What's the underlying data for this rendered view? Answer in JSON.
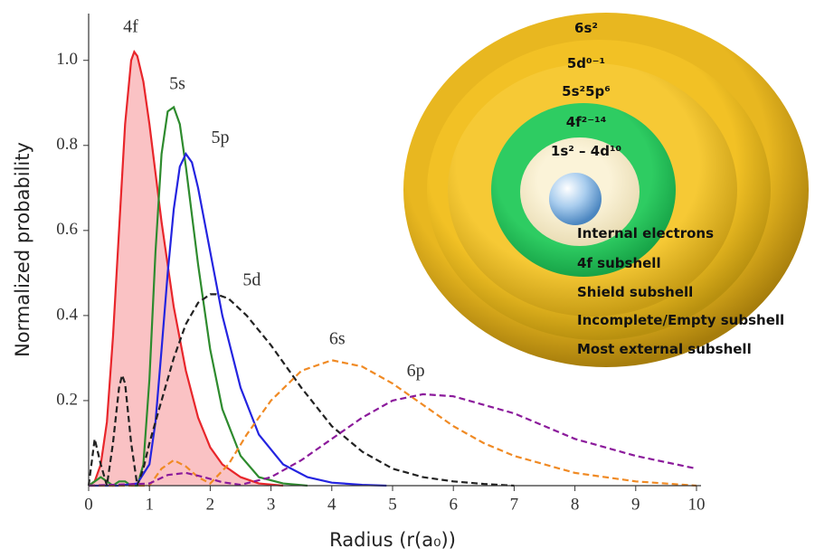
{
  "chart_data": {
    "type": "line",
    "x_label": "Radius (r(a₀))",
    "y_label": "Normalized probability",
    "xlim": [
      0,
      10
    ],
    "xticks": [
      0,
      1,
      2,
      3,
      4,
      5,
      6,
      7,
      8,
      9,
      10
    ],
    "ylim": [
      0,
      1.11
    ],
    "yticks": [
      {
        "value": 0.2,
        "label": "0.2"
      },
      {
        "value": 0.4,
        "label": "0.4"
      },
      {
        "value": 0.6,
        "label": "0.6"
      },
      {
        "value": 0.8,
        "label": "0.8"
      },
      {
        "value": 1,
        "label": "1.0"
      }
    ],
    "series": [
      {
        "name": "4f",
        "color": "#e8262b",
        "dashed": false,
        "fill": "#f9b3b5",
        "x": [
          0,
          0.1,
          0.2,
          0.3,
          0.4,
          0.5,
          0.6,
          0.7,
          0.75,
          0.8,
          0.9,
          1.0,
          1.2,
          1.4,
          1.6,
          1.8,
          2.0,
          2.2,
          2.5,
          2.8,
          3.2
        ],
        "values": [
          0,
          0.01,
          0.05,
          0.15,
          0.35,
          0.6,
          0.85,
          1.0,
          1.02,
          1.01,
          0.95,
          0.85,
          0.62,
          0.42,
          0.27,
          0.16,
          0.09,
          0.05,
          0.02,
          0.005,
          0
        ]
      },
      {
        "name": "5s",
        "color": "#2e8b2e",
        "dashed": false,
        "x": [
          0,
          0.1,
          0.2,
          0.3,
          0.4,
          0.5,
          0.6,
          0.7,
          0.8,
          0.9,
          1.0,
          1.1,
          1.2,
          1.3,
          1.4,
          1.5,
          1.6,
          1.8,
          2.0,
          2.2,
          2.5,
          2.8,
          3.2,
          3.6
        ],
        "values": [
          0,
          0.01,
          0.02,
          0.01,
          0,
          0.01,
          0.01,
          0,
          0,
          0.05,
          0.25,
          0.55,
          0.78,
          0.88,
          0.89,
          0.85,
          0.75,
          0.52,
          0.32,
          0.18,
          0.07,
          0.02,
          0.005,
          0
        ]
      },
      {
        "name": "5p",
        "color": "#2424e0",
        "dashed": false,
        "x": [
          0,
          0.5,
          0.8,
          1.0,
          1.1,
          1.2,
          1.3,
          1.4,
          1.5,
          1.6,
          1.7,
          1.8,
          2.0,
          2.2,
          2.5,
          2.8,
          3.2,
          3.6,
          4.0,
          4.5,
          4.9
        ],
        "values": [
          0,
          0,
          0.005,
          0.05,
          0.15,
          0.32,
          0.5,
          0.65,
          0.75,
          0.78,
          0.76,
          0.7,
          0.55,
          0.4,
          0.23,
          0.12,
          0.05,
          0.02,
          0.007,
          0.002,
          0
        ]
      },
      {
        "name": "5d",
        "color": "#222222",
        "dashed": true,
        "x": [
          0,
          0.1,
          0.2,
          0.3,
          0.4,
          0.5,
          0.55,
          0.6,
          0.7,
          0.8,
          0.9,
          1.0,
          1.2,
          1.4,
          1.6,
          1.8,
          2.0,
          2.1,
          2.3,
          2.6,
          3.0,
          3.5,
          4.0,
          4.5,
          5.0,
          5.5,
          6.0,
          6.5,
          7.0
        ],
        "values": [
          0,
          0.11,
          0.05,
          0,
          0.1,
          0.23,
          0.26,
          0.24,
          0.1,
          0,
          0.04,
          0.1,
          0.2,
          0.3,
          0.38,
          0.43,
          0.45,
          0.45,
          0.44,
          0.4,
          0.33,
          0.23,
          0.14,
          0.08,
          0.04,
          0.02,
          0.01,
          0.004,
          0
        ]
      },
      {
        "name": "6s",
        "color": "#f08a24",
        "dashed": true,
        "x": [
          0,
          1.0,
          1.2,
          1.4,
          1.6,
          1.8,
          2.0,
          2.3,
          2.6,
          3.0,
          3.5,
          4.0,
          4.5,
          5.0,
          5.5,
          6.0,
          6.5,
          7.0,
          8.0,
          9.0,
          10.0
        ],
        "values": [
          0,
          0,
          0.04,
          0.06,
          0.045,
          0.02,
          0.005,
          0.05,
          0.12,
          0.2,
          0.27,
          0.295,
          0.28,
          0.24,
          0.19,
          0.14,
          0.1,
          0.07,
          0.03,
          0.01,
          0
        ]
      },
      {
        "name": "6p",
        "color": "#8b1a9b",
        "dashed": true,
        "x": [
          0,
          1.0,
          1.3,
          1.6,
          1.9,
          2.2,
          2.5,
          3.0,
          3.5,
          4.0,
          4.5,
          5.0,
          5.5,
          6.0,
          7.0,
          8.0,
          9.0,
          10.0
        ],
        "values": [
          0,
          0.005,
          0.025,
          0.03,
          0.02,
          0.008,
          0.002,
          0.02,
          0.06,
          0.11,
          0.16,
          0.2,
          0.215,
          0.21,
          0.17,
          0.11,
          0.07,
          0.04
        ]
      }
    ]
  },
  "diagram": {
    "shells": [
      {
        "label": "6s²",
        "description": "Most external subshell"
      },
      {
        "label": "5d⁰⁻¹",
        "description": "Incomplete/Empty subshell"
      },
      {
        "label": "5s²5p⁶",
        "description": "Shield subshell"
      },
      {
        "label": "4f²⁻¹⁴",
        "description": "4f subshell"
      },
      {
        "label": "1s² – 4d¹⁰",
        "description": "Internal electrons"
      }
    ]
  }
}
